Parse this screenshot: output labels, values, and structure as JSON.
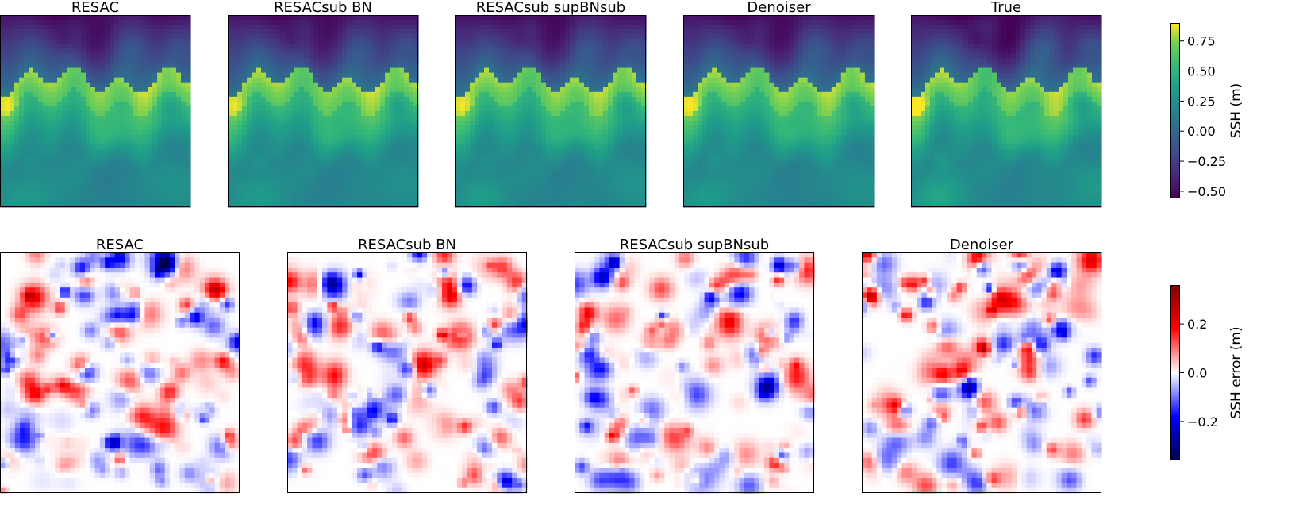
{
  "chart_data": [
    {
      "type": "heatmap",
      "row": "top",
      "panel_titles": [
        "RESAC",
        "RESACsub BN",
        "RESACsub supBNsub",
        "Denoiser",
        "True"
      ],
      "colormap": "viridis",
      "colorbar": {
        "label": "SSH (m)",
        "range": [
          -0.56,
          0.9
        ],
        "ticks": [
          -0.5,
          -0.25,
          0.0,
          0.25,
          0.5,
          0.75
        ],
        "tick_labels": [
          "−0.50",
          "−0.25",
          "0.00",
          "0.25",
          "0.50",
          "0.75"
        ]
      }
    },
    {
      "type": "heatmap",
      "row": "bottom",
      "panel_titles": [
        "RESAC",
        "RESACsub BN",
        "RESACsub supBNsub",
        "Denoiser"
      ],
      "colormap": "seismic",
      "colorbar": {
        "label": "SSH error (m)",
        "range": [
          -0.36,
          0.36
        ],
        "ticks": [
          -0.2,
          0.0,
          0.2
        ],
        "tick_labels": [
          "−0.2",
          "0.0",
          "0.2"
        ]
      }
    }
  ]
}
